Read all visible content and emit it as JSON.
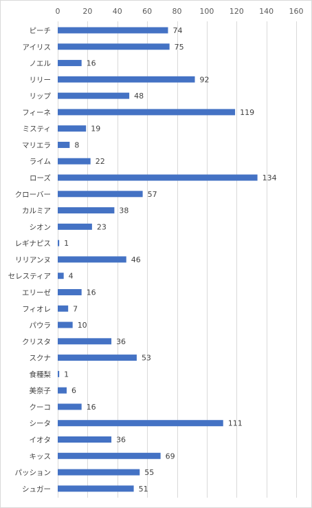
{
  "chart_data": {
    "type": "bar",
    "orientation": "horizontal",
    "categories": [
      "ピーチ",
      "アイリス",
      "ノエル",
      "リリー",
      "リップ",
      "フィーネ",
      "ミスティ",
      "マリエラ",
      "ライム",
      "ローズ",
      "クローバー",
      "カルミア",
      "シオン",
      "レギナピス",
      "リリアンヌ",
      "セレスティア",
      "エリーゼ",
      "フィオレ",
      "パウラ",
      "クリスタ",
      "スクナ",
      "食種梨",
      "美奈子",
      "クーコ",
      "シータ",
      "イオタ",
      "キッス",
      "パッション",
      "シュガー"
    ],
    "values": [
      74,
      75,
      16,
      92,
      48,
      119,
      19,
      8,
      22,
      134,
      57,
      38,
      23,
      1,
      46,
      4,
      16,
      7,
      10,
      36,
      53,
      1,
      6,
      16,
      111,
      36,
      69,
      55,
      51
    ],
    "xlim": [
      0,
      160
    ],
    "xticks": [
      0,
      20,
      40,
      60,
      80,
      100,
      120,
      140,
      160
    ],
    "xtick_labels": [
      "0",
      "20",
      "40",
      "60",
      "80",
      "100",
      "120",
      "140",
      "160"
    ],
    "grid": true,
    "axis_position": "top",
    "legend": "none",
    "title": "",
    "xlabel": "",
    "ylabel": "",
    "colors": {
      "bar": "#4472c4",
      "grid": "#d9d9d9",
      "text": "#404040"
    }
  }
}
